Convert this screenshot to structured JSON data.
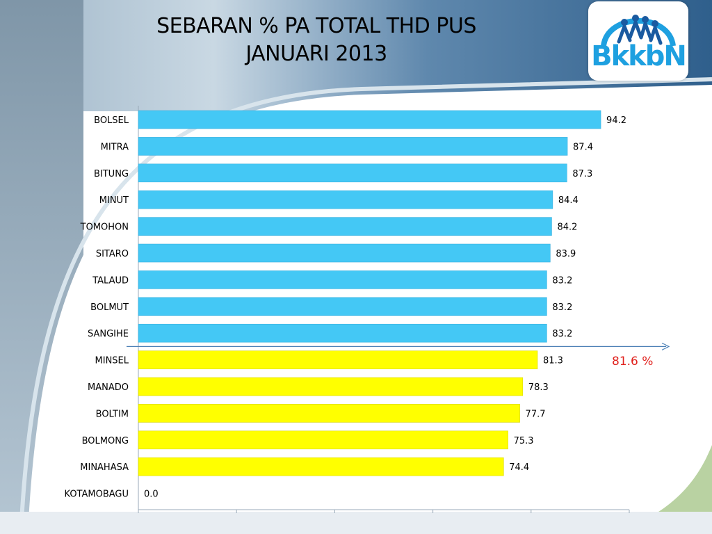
{
  "title_line1": "SEBARAN % PA TOTAL THD PUS",
  "title_line2": "JANUARI 2013",
  "logo": {
    "text": "BkkbN",
    "icon": "family-figures-icon"
  },
  "colors": {
    "above": "#44c8f5",
    "below": "#ffff00",
    "reference": "#e0201c",
    "axis": "#4a7fb5"
  },
  "chart_data": {
    "type": "bar",
    "orientation": "horizontal",
    "categories": [
      "BOLSEL",
      "MITRA",
      "BITUNG",
      "MINUT",
      "TOMOHON",
      "SITARO",
      "TALAUD",
      "BOLMUT",
      "SANGIHE",
      "MINSEL",
      "MANADO",
      "BOLTIM",
      "BOLMONG",
      "MINAHASA",
      "KOTAMOBAGU"
    ],
    "values": [
      94.2,
      87.4,
      87.3,
      84.4,
      84.2,
      83.9,
      83.2,
      83.2,
      83.2,
      81.3,
      78.3,
      77.7,
      75.3,
      74.4,
      0.0
    ],
    "value_labels": [
      "94.2",
      "87.4",
      "87.3",
      "84.4",
      "84.2",
      "83.9",
      "83.2",
      "83.2",
      "83.2",
      "81.3",
      "78.3",
      "77.7",
      "75.3",
      "74.4",
      "0.0"
    ],
    "xlim": [
      0,
      100
    ],
    "reference": {
      "value": 81.6,
      "label": "81.6 %"
    },
    "grid": false,
    "legend": "none"
  }
}
